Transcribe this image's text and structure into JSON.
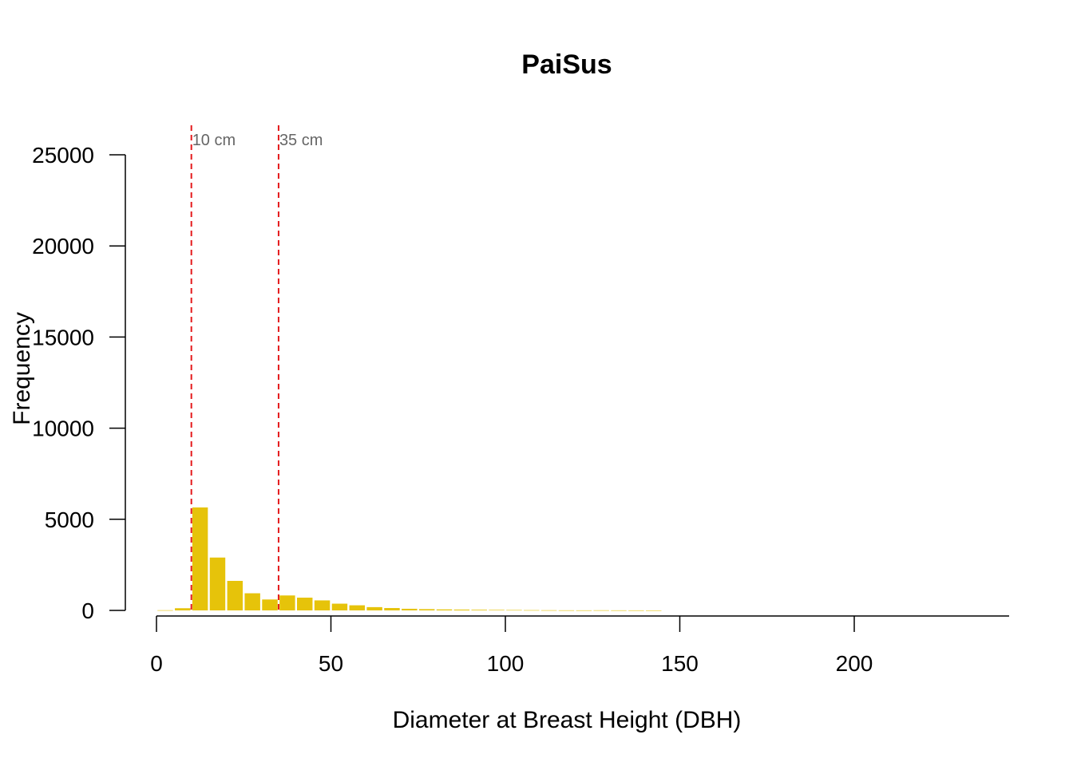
{
  "chart_data": {
    "type": "bar",
    "title": "PaiSus",
    "xlabel": "Diameter at Breast Height (DBH)",
    "ylabel": "Frequency",
    "xlim": [
      0,
      240
    ],
    "ylim": [
      0,
      25000
    ],
    "x_ticks": [
      0,
      50,
      100,
      150,
      200
    ],
    "x_tick_labels": [
      "0",
      "50",
      "100",
      "150",
      "200"
    ],
    "y_ticks": [
      0,
      5000,
      10000,
      15000,
      20000,
      25000
    ],
    "y_tick_labels": [
      "0",
      "5000",
      "10000",
      "15000",
      "20000",
      "25000"
    ],
    "bin_width": 5,
    "bins_start": [
      0,
      5,
      10,
      15,
      20,
      25,
      30,
      35,
      40,
      45,
      50,
      55,
      60,
      65,
      70,
      75,
      80,
      85,
      90,
      95,
      100,
      105,
      110,
      115,
      120,
      125,
      130,
      135,
      140
    ],
    "values": [
      10,
      120,
      5650,
      2900,
      1620,
      940,
      600,
      820,
      700,
      550,
      370,
      280,
      180,
      130,
      90,
      70,
      55,
      45,
      35,
      28,
      22,
      15,
      10,
      6,
      5,
      8,
      5,
      4,
      3
    ],
    "bar_color": "#E6C30A",
    "reference_lines": [
      {
        "x": 10,
        "label": "10 cm",
        "color": "#E41A1C"
      },
      {
        "x": 35,
        "label": "35 cm",
        "color": "#E41A1C"
      }
    ],
    "grid": false,
    "legend": "none"
  }
}
